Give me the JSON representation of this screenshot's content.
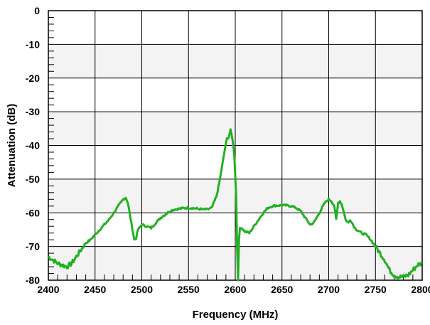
{
  "chart_data": {
    "type": "line",
    "xlabel": "Frequency (MHz)",
    "ylabel": "Attenuation (dB)",
    "xlim": [
      2400,
      2800
    ],
    "ylim": [
      -80,
      0
    ],
    "x_ticks": [
      "2400",
      "2450",
      "2500",
      "2550",
      "2600",
      "2650",
      "2700",
      "2750",
      "2800"
    ],
    "y_ticks": [
      "0",
      "-10",
      "-20",
      "-30",
      "-40",
      "-50",
      "-60",
      "-70",
      "-80"
    ],
    "grid": true,
    "alternating_bands": true,
    "legend": "none",
    "series": [
      {
        "color": "#22b022",
        "x": [
          2400,
          2405,
          2410,
          2415,
          2420,
          2425,
          2430,
          2435,
          2440,
          2445,
          2450,
          2455,
          2460,
          2465,
          2470,
          2475,
          2480,
          2483,
          2485,
          2487,
          2490,
          2492,
          2494,
          2496,
          2500,
          2505,
          2510,
          2515,
          2520,
          2525,
          2530,
          2535,
          2540,
          2545,
          2550,
          2555,
          2560,
          2565,
          2570,
          2575,
          2580,
          2583,
          2586,
          2589,
          2591,
          2593,
          2595,
          2597,
          2599,
          2601,
          2602,
          2603,
          2604,
          2605,
          2607,
          2610,
          2615,
          2620,
          2625,
          2630,
          2635,
          2640,
          2645,
          2650,
          2655,
          2660,
          2665,
          2670,
          2675,
          2680,
          2684,
          2688,
          2692,
          2696,
          2700,
          2703,
          2706,
          2708,
          2709,
          2710,
          2712,
          2714,
          2716,
          2718,
          2721,
          2723,
          2725,
          2728,
          2730,
          2735,
          2740,
          2745,
          2750,
          2755,
          2760,
          2765,
          2770,
          2775,
          2780,
          2785,
          2790,
          2795,
          2800
        ],
        "y": [
          -73,
          -74,
          -75,
          -75.5,
          -76,
          -75,
          -73,
          -71,
          -69,
          -68,
          -66.5,
          -65,
          -63.5,
          -62,
          -60,
          -58,
          -56,
          -55.5,
          -57,
          -60,
          -65,
          -68,
          -67.5,
          -65,
          -63.5,
          -64,
          -64.5,
          -63,
          -61.5,
          -60.5,
          -59.5,
          -59,
          -58.8,
          -58.6,
          -58.5,
          -58.6,
          -58.8,
          -59,
          -59,
          -58.5,
          -55,
          -51,
          -46,
          -41,
          -38,
          -37.5,
          -35.5,
          -38,
          -43,
          -55,
          -70,
          -80,
          -68,
          -64.5,
          -64.5,
          -65.5,
          -66,
          -64,
          -62,
          -60,
          -58.5,
          -58,
          -57.8,
          -57.8,
          -57.8,
          -58,
          -58.5,
          -59.5,
          -61.5,
          -63.5,
          -63,
          -61,
          -59,
          -57,
          -56,
          -56.5,
          -58,
          -62,
          -60,
          -57,
          -56.5,
          -57.5,
          -59.5,
          -62,
          -63,
          -62,
          -63,
          -64.5,
          -65,
          -66,
          -66.5,
          -68,
          -70,
          -72,
          -74,
          -77,
          -78.5,
          -79,
          -79,
          -78.5,
          -77,
          -75.5,
          -75
        ]
      }
    ]
  }
}
